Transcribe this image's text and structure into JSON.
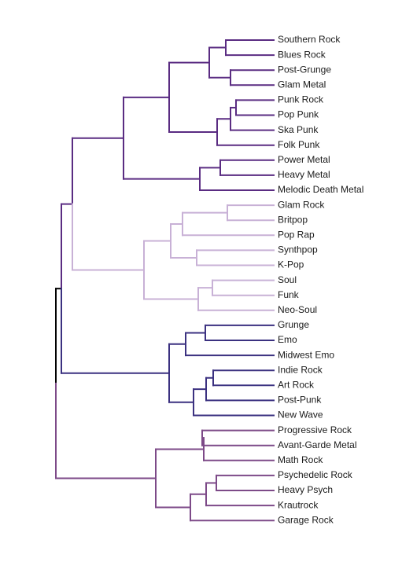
{
  "colors": {
    "root": "#000000",
    "g1": "#5a2c82",
    "g2": "#c8b1d6",
    "g3": "#3b3180",
    "g4": "#7d4a88"
  },
  "leaves": [
    {
      "label": "Southern Rock",
      "group": "g1"
    },
    {
      "label": "Blues Rock",
      "group": "g1"
    },
    {
      "label": "Post-Grunge",
      "group": "g1"
    },
    {
      "label": "Glam Metal",
      "group": "g1"
    },
    {
      "label": "Punk Rock",
      "group": "g1"
    },
    {
      "label": "Pop Punk",
      "group": "g1"
    },
    {
      "label": "Ska Punk",
      "group": "g1"
    },
    {
      "label": "Folk Punk",
      "group": "g1"
    },
    {
      "label": "Power Metal",
      "group": "g1"
    },
    {
      "label": "Heavy Metal",
      "group": "g1"
    },
    {
      "label": "Melodic Death Metal",
      "group": "g1"
    },
    {
      "label": "Glam Rock",
      "group": "g2"
    },
    {
      "label": "Britpop",
      "group": "g2"
    },
    {
      "label": "Pop Rap",
      "group": "g2"
    },
    {
      "label": "Synthpop",
      "group": "g2"
    },
    {
      "label": "K-Pop",
      "group": "g2"
    },
    {
      "label": "Soul",
      "group": "g2"
    },
    {
      "label": "Funk",
      "group": "g2"
    },
    {
      "label": "Neo-Soul",
      "group": "g2"
    },
    {
      "label": "Grunge",
      "group": "g3"
    },
    {
      "label": "Emo",
      "group": "g3"
    },
    {
      "label": "Midwest Emo",
      "group": "g3"
    },
    {
      "label": "Indie Rock",
      "group": "g3"
    },
    {
      "label": "Art Rock",
      "group": "g3"
    },
    {
      "label": "Post-Punk",
      "group": "g3"
    },
    {
      "label": "New Wave",
      "group": "g3"
    },
    {
      "label": "Progressive Rock",
      "group": "g4"
    },
    {
      "label": "Avant-Garde Metal",
      "group": "g4"
    },
    {
      "label": "Math Rock",
      "group": "g4"
    },
    {
      "label": "Psychedelic Rock",
      "group": "g4"
    },
    {
      "label": "Heavy Psych",
      "group": "g4"
    },
    {
      "label": "Krautrock",
      "group": "g4"
    },
    {
      "label": "Garage Rock",
      "group": "g4"
    }
  ]
}
